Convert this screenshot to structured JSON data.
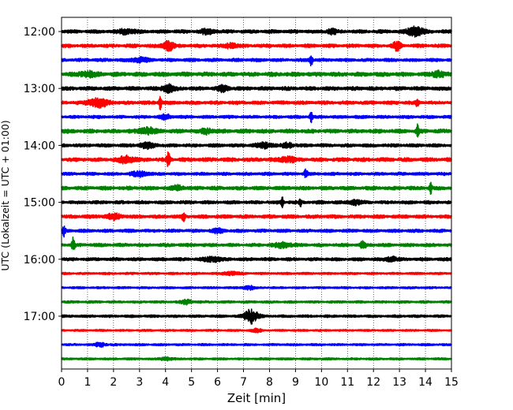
{
  "chart_data": {
    "type": "line",
    "title": "",
    "xlabel": "Zeit  [min]",
    "ylabel": "UTC (Lokalzeit = UTC + 01:00)",
    "xlim": [
      0,
      15
    ],
    "x_ticks": [
      0,
      1,
      2,
      3,
      4,
      5,
      6,
      7,
      8,
      9,
      10,
      11,
      12,
      13,
      14,
      15
    ],
    "y_tick_labels": [
      "12:00",
      "13:00",
      "14:00",
      "15:00",
      "16:00",
      "17:00"
    ],
    "grid": "vertical dotted lines at each minute",
    "trace_start_times": [
      "12:00",
      "12:15",
      "12:30",
      "12:45",
      "13:00",
      "13:15",
      "13:30",
      "13:45",
      "14:00",
      "14:15",
      "14:30",
      "14:45",
      "15:00",
      "15:15",
      "15:30",
      "15:45",
      "16:00",
      "16:15",
      "16:30",
      "16:45",
      "17:00",
      "17:15",
      "17:30",
      "17:45"
    ],
    "color_cycle": [
      "#000000",
      "#ff0000",
      "#0000ff",
      "#008000"
    ],
    "traces": [
      {
        "noise": 2.3,
        "events": [
          [
            2.5,
            3,
            0.3
          ],
          [
            5.6,
            2.5,
            0.3
          ],
          [
            10.4,
            3,
            0.2
          ],
          [
            13.6,
            6,
            0.3
          ]
        ]
      },
      {
        "noise": 2.3,
        "events": [
          [
            4.1,
            6,
            0.2
          ],
          [
            12.9,
            5,
            0.15
          ],
          [
            6.5,
            3,
            0.2
          ]
        ]
      },
      {
        "noise": 2.1,
        "events": [
          [
            3.0,
            2.5,
            0.3
          ],
          [
            9.6,
            7,
            0.06
          ]
        ]
      },
      {
        "noise": 2.8,
        "events": [
          [
            1.0,
            3,
            0.3
          ],
          [
            14.5,
            4,
            0.2
          ]
        ]
      },
      {
        "noise": 2.5,
        "events": [
          [
            4.1,
            5,
            0.2
          ],
          [
            6.2,
            3,
            0.2
          ]
        ]
      },
      {
        "noise": 2.3,
        "events": [
          [
            1.4,
            5,
            0.4
          ],
          [
            3.8,
            8,
            0.06
          ],
          [
            13.7,
            6,
            0.06
          ]
        ]
      },
      {
        "noise": 2.0,
        "events": [
          [
            9.6,
            7,
            0.05
          ],
          [
            4.0,
            3,
            0.2
          ]
        ]
      },
      {
        "noise": 2.6,
        "events": [
          [
            3.3,
            4,
            0.3
          ],
          [
            5.6,
            3,
            0.2
          ],
          [
            13.7,
            9,
            0.05
          ]
        ]
      },
      {
        "noise": 2.2,
        "events": [
          [
            3.3,
            3,
            0.3
          ],
          [
            7.8,
            3,
            0.3
          ],
          [
            8.7,
            3,
            0.2
          ]
        ]
      },
      {
        "noise": 2.5,
        "events": [
          [
            4.1,
            8,
            0.08
          ],
          [
            2.5,
            4,
            0.3
          ],
          [
            8.7,
            3,
            0.3
          ]
        ]
      },
      {
        "noise": 2.0,
        "events": [
          [
            9.4,
            7,
            0.06
          ],
          [
            3.0,
            3,
            0.3
          ]
        ]
      },
      {
        "noise": 2.4,
        "events": [
          [
            14.2,
            7,
            0.05
          ],
          [
            4.5,
            3,
            0.2
          ]
        ]
      },
      {
        "noise": 2.2,
        "events": [
          [
            8.5,
            6,
            0.05
          ],
          [
            9.2,
            4,
            0.05
          ],
          [
            11.3,
            3,
            0.2
          ]
        ]
      },
      {
        "noise": 2.3,
        "events": [
          [
            4.7,
            7,
            0.06
          ],
          [
            2.0,
            3,
            0.3
          ]
        ]
      },
      {
        "noise": 2.1,
        "events": [
          [
            0.1,
            6,
            0.05
          ],
          [
            6.0,
            3,
            0.2
          ]
        ]
      },
      {
        "noise": 2.2,
        "events": [
          [
            0.45,
            9,
            0.06
          ],
          [
            11.6,
            5,
            0.1
          ],
          [
            8.5,
            3,
            0.3
          ]
        ]
      },
      {
        "noise": 2.1,
        "events": [
          [
            5.8,
            3,
            0.3
          ],
          [
            12.7,
            3,
            0.2
          ]
        ]
      },
      {
        "noise": 1.5,
        "events": [
          [
            6.5,
            2,
            0.3
          ]
        ]
      },
      {
        "noise": 1.4,
        "events": [
          [
            7.2,
            2.5,
            0.2
          ]
        ]
      },
      {
        "noise": 1.6,
        "events": [
          [
            4.8,
            2.5,
            0.2
          ]
        ]
      },
      {
        "noise": 1.7,
        "events": [
          [
            7.3,
            9,
            0.25
          ]
        ]
      },
      {
        "noise": 1.3,
        "events": [
          [
            7.5,
            2,
            0.2
          ]
        ]
      },
      {
        "noise": 1.4,
        "events": [
          [
            1.5,
            2.5,
            0.2
          ]
        ]
      },
      {
        "noise": 1.4,
        "events": [
          [
            4.0,
            2,
            0.2
          ]
        ]
      }
    ]
  }
}
